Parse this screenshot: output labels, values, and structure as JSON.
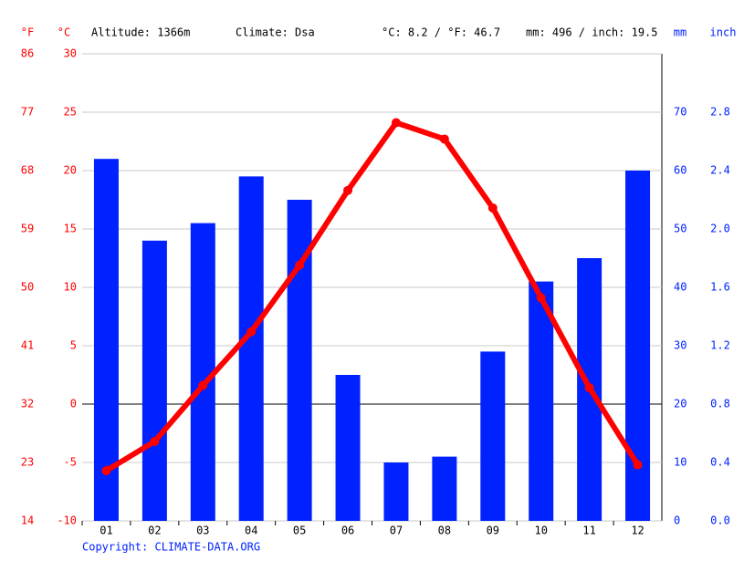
{
  "chart_data": {
    "type": "climate",
    "annotations": [
      "Altitude: 1366m",
      "Climate: Dsa",
      "°C: 8.2 / °F: 46.7",
      "mm: 496 / inch: 19.5"
    ],
    "categories": [
      "01",
      "02",
      "03",
      "04",
      "05",
      "06",
      "07",
      "08",
      "09",
      "10",
      "11",
      "12"
    ],
    "series": [
      {
        "name": "Precipitation",
        "type": "bar",
        "axis": "y2",
        "color": "#0022ff",
        "values": [
          62,
          48,
          51,
          59,
          55,
          25,
          10,
          11,
          29,
          41,
          45,
          60
        ]
      },
      {
        "name": "Temperature",
        "type": "line",
        "color": "#ff0000",
        "values": [
          -5.7,
          -3.2,
          1.6,
          6.2,
          11.9,
          18.3,
          24.1,
          22.7,
          16.8,
          9.1,
          1.4,
          -5.2
        ]
      }
    ],
    "ylabel": "°C",
    "ylim": [
      -10,
      30
    ],
    "yticks": [
      -10,
      -5,
      0,
      5,
      10,
      15,
      20,
      25,
      30
    ],
    "yflabel": "°F",
    "yflim": [
      14,
      86
    ],
    "yfticks": [
      14,
      23,
      32,
      41,
      50,
      59,
      68,
      77,
      86
    ],
    "y2label": "mm",
    "y2lim": [
      0,
      80
    ],
    "y2ticks": [
      0,
      10,
      20,
      30,
      40,
      50,
      60,
      70
    ],
    "y3label": "inch",
    "y3lim": [
      0,
      3.2
    ],
    "y3ticks": [
      {
        "value": 0,
        "label": "0.0"
      },
      {
        "value": 0.4,
        "label": "0.4"
      },
      {
        "value": 0.8,
        "label": "0.8"
      },
      {
        "value": 1.2,
        "label": "1.2"
      },
      {
        "value": 1.6,
        "label": "1.6"
      },
      {
        "value": 2,
        "label": "2.0"
      },
      {
        "value": 2.4,
        "label": "2.4"
      },
      {
        "value": 2.8,
        "label": "2.8"
      }
    ],
    "grid": true,
    "source": "Copyright: CLIMATE-DATA.ORG"
  }
}
